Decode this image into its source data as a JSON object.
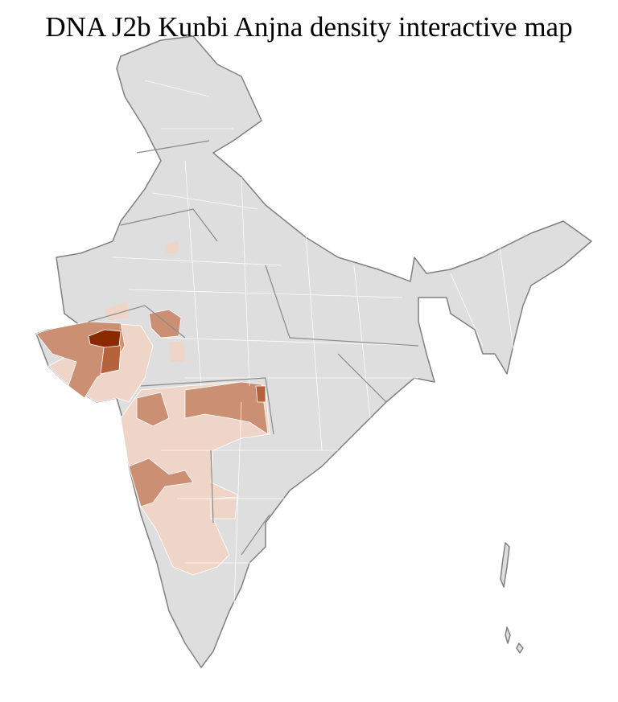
{
  "title": "DNA J2b Kunbi Anjna density interactive map",
  "map": {
    "region": "India districts",
    "colors": {
      "no_data": "#dedede",
      "low": "#efd5c7",
      "medium": "#cb9074",
      "high": "#b4633d",
      "highest": "#8b2a00",
      "border": "#808080"
    }
  }
}
